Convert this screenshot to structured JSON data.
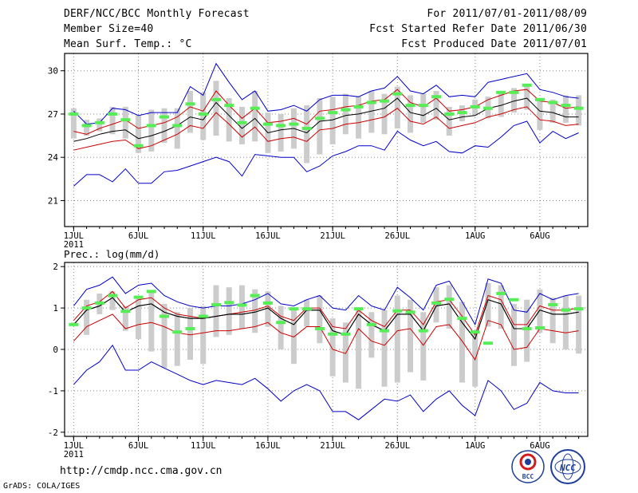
{
  "header": {
    "title": "DERF/NCC/BCC Monthly Forecast",
    "member_size": "Member Size=40",
    "variable": "Mean Surf. Temp.: °C",
    "period": "For 2011/07/01-2011/08/09",
    "refer_date": "Fcst Started Refer Date 2011/06/30",
    "produced_date": "Fcst Produced Date 2011/07/01"
  },
  "footer": {
    "url": "http://cmdp.ncc.cma.gov.cn",
    "grads_credit": "GrADS: COLA/IGES",
    "logo_bcc": "BCC",
    "logo_ncc": "NCC"
  },
  "colors": {
    "blue": "#0000cc",
    "red": "#cc0000",
    "black": "#000000",
    "green": "#55ee55",
    "box": "#cccccc"
  },
  "chart_data": [
    {
      "type": "ensemble-box-line",
      "title": "Mean Surf. Temp.: °C",
      "ylabel": "°C",
      "ylim": [
        19.2,
        31.2
      ],
      "yticks": [
        21,
        24,
        27,
        30
      ],
      "xlim": [
        0.3,
        40.7
      ],
      "xtick_days": [
        1,
        6,
        11,
        16,
        21,
        26,
        32,
        37
      ],
      "xtick_labels": [
        "1JUL",
        "6JUL",
        "11JUL",
        "16JUL",
        "21JUL",
        "26JUL",
        "1AUG",
        "6AUG"
      ],
      "year_label": "2011",
      "days": [
        1,
        2,
        3,
        4,
        5,
        6,
        7,
        8,
        9,
        10,
        11,
        12,
        13,
        14,
        15,
        16,
        17,
        18,
        19,
        20,
        21,
        22,
        23,
        24,
        25,
        26,
        27,
        28,
        29,
        30,
        31,
        32,
        33,
        34,
        35,
        36,
        37,
        38,
        39,
        40
      ],
      "series": [
        {
          "name": "ens_max",
          "color": "blue",
          "values": [
            27.2,
            26.3,
            26.4,
            27.4,
            27.3,
            26.9,
            27.1,
            27.1,
            27.1,
            28.9,
            28.3,
            30.5,
            29.2,
            28.0,
            28.6,
            27.2,
            27.3,
            27.6,
            27.2,
            28.0,
            28.3,
            28.3,
            28.2,
            28.6,
            28.8,
            29.6,
            28.6,
            28.4,
            29.0,
            28.2,
            28.3,
            28.2,
            29.2,
            29.4,
            29.6,
            29.8,
            28.7,
            28.5,
            28.2,
            28.1
          ]
        },
        {
          "name": "upper",
          "color": "red",
          "values": [
            25.8,
            25.6,
            26.0,
            26.3,
            26.6,
            26.0,
            26.2,
            26.4,
            26.8,
            27.5,
            27.2,
            28.6,
            27.6,
            26.7,
            27.4,
            26.4,
            26.5,
            26.7,
            26.3,
            27.2,
            27.3,
            27.5,
            27.6,
            27.9,
            28.0,
            28.7,
            27.8,
            27.5,
            28.1,
            27.2,
            27.3,
            27.5,
            28.0,
            28.3,
            28.6,
            28.7,
            27.9,
            27.8,
            27.4,
            27.5
          ]
        },
        {
          "name": "mean",
          "color": "black",
          "values": [
            25.1,
            25.3,
            25.6,
            25.8,
            25.9,
            25.3,
            25.5,
            25.8,
            26.2,
            26.8,
            26.6,
            27.8,
            26.9,
            26.0,
            26.7,
            25.7,
            25.9,
            26.0,
            25.7,
            26.5,
            26.6,
            26.9,
            27.0,
            27.2,
            27.4,
            28.1,
            27.1,
            26.9,
            27.4,
            26.6,
            26.8,
            26.9,
            27.4,
            27.6,
            27.9,
            28.1,
            27.2,
            27.1,
            26.8,
            26.8
          ]
        },
        {
          "name": "lower",
          "color": "red",
          "values": [
            24.5,
            24.7,
            24.9,
            25.1,
            25.2,
            24.6,
            24.8,
            25.2,
            25.6,
            26.2,
            26.0,
            27.1,
            26.3,
            25.4,
            26.1,
            25.1,
            25.3,
            25.4,
            25.1,
            25.9,
            26.0,
            26.3,
            26.4,
            26.6,
            26.8,
            27.4,
            26.5,
            26.3,
            26.8,
            26.0,
            26.2,
            26.4,
            26.8,
            27.0,
            27.3,
            27.5,
            26.6,
            26.5,
            26.2,
            26.3
          ]
        },
        {
          "name": "ens_min",
          "color": "blue",
          "values": [
            22.0,
            22.8,
            22.8,
            22.3,
            23.2,
            22.2,
            22.2,
            23.0,
            23.1,
            23.4,
            23.7,
            24.0,
            23.7,
            22.7,
            24.2,
            24.1,
            24.0,
            24.0,
            23.0,
            23.4,
            24.1,
            24.4,
            24.8,
            24.8,
            24.5,
            25.8,
            25.2,
            24.8,
            25.1,
            24.4,
            24.3,
            24.8,
            24.7,
            25.4,
            26.2,
            26.5,
            25.0,
            25.8,
            25.3,
            25.7
          ]
        }
      ],
      "box_low": [
        25.3,
        25.5,
        25.8,
        25.6,
        25.3,
        24.3,
        24.4,
        25.0,
        24.6,
        25.7,
        25.2,
        25.5,
        25.1,
        24.9,
        25.1,
        24.3,
        24.4,
        24.6,
        23.6,
        24.2,
        24.9,
        25.6,
        25.3,
        25.7,
        25.6,
        26.0,
        25.7,
        26.4,
        26.6,
        25.5,
        26.5,
        26.9,
        26.7,
        26.8,
        27.1,
        27.3,
        25.9,
        26.4,
        26.4,
        26.2
      ],
      "box_high": [
        27.4,
        26.6,
        26.7,
        27.5,
        27.5,
        26.9,
        27.3,
        27.4,
        27.4,
        28.6,
        28.5,
        29.3,
        28.1,
        27.5,
        28.6,
        27.1,
        27.0,
        27.4,
        27.6,
        28.1,
        28.2,
        28.4,
        28.2,
        28.6,
        28.4,
        28.9,
        28.3,
        28.4,
        28.6,
        27.5,
        27.6,
        28.0,
        28.2,
        28.6,
        28.8,
        29.0,
        28.0,
        28.0,
        28.3,
        28.3
      ],
      "observed": [
        27.0,
        26.2,
        26.4,
        27.0,
        26.6,
        24.8,
        26.2,
        26.8,
        26.2,
        27.7,
        27.0,
        28.0,
        27.6,
        26.4,
        27.4,
        26.3,
        26.2,
        26.3,
        26.0,
        26.7,
        27.1,
        27.3,
        27.5,
        27.8,
        27.9,
        28.4,
        27.6,
        27.6,
        28.2,
        27.0,
        27.1,
        27.5,
        27.4,
        28.5,
        28.5,
        29.0,
        28.0,
        27.8,
        27.6,
        27.4
      ]
    },
    {
      "type": "ensemble-box-line",
      "title": "Prec.: log(mm/d)",
      "ylabel": "log(mm/d)",
      "ylim": [
        -2.1,
        2.1
      ],
      "yticks": [
        -2,
        -1,
        0,
        1,
        2
      ],
      "xlim": [
        0.3,
        40.7
      ],
      "xtick_days": [
        1,
        6,
        11,
        16,
        21,
        26,
        32,
        37
      ],
      "xtick_labels": [
        "1JUL",
        "6JUL",
        "11JUL",
        "16JUL",
        "21JUL",
        "26JUL",
        "1AUG",
        "6AUG"
      ],
      "year_label": "2011",
      "days": [
        1,
        2,
        3,
        4,
        5,
        6,
        7,
        8,
        9,
        10,
        11,
        12,
        13,
        14,
        15,
        16,
        17,
        18,
        19,
        20,
        21,
        22,
        23,
        24,
        25,
        26,
        27,
        28,
        29,
        30,
        31,
        32,
        33,
        34,
        35,
        36,
        37,
        38,
        39,
        40
      ],
      "series": [
        {
          "name": "ens_max",
          "color": "blue",
          "values": [
            1.05,
            1.45,
            1.55,
            1.75,
            1.35,
            1.55,
            1.6,
            1.3,
            1.15,
            1.05,
            1.0,
            1.05,
            1.05,
            1.1,
            1.2,
            1.35,
            1.1,
            1.05,
            1.2,
            1.3,
            1.0,
            0.95,
            1.3,
            1.05,
            0.95,
            1.5,
            1.25,
            0.95,
            1.55,
            1.65,
            1.15,
            0.6,
            1.7,
            1.6,
            0.95,
            0.9,
            1.35,
            1.2,
            1.3,
            1.35
          ]
        },
        {
          "name": "upper",
          "color": "red",
          "values": [
            0.7,
            1.05,
            1.15,
            1.4,
            1.0,
            1.2,
            1.25,
            1.0,
            0.85,
            0.8,
            0.75,
            0.8,
            0.85,
            0.9,
            0.95,
            1.05,
            0.8,
            0.7,
            1.0,
            1.0,
            0.55,
            0.5,
            0.95,
            0.7,
            0.55,
            0.95,
            0.95,
            0.6,
            1.15,
            1.2,
            0.8,
            0.35,
            1.3,
            1.2,
            0.6,
            0.6,
            1.05,
            0.95,
            0.95,
            1.0
          ]
        },
        {
          "name": "mean",
          "color": "black",
          "values": [
            0.6,
            0.95,
            1.05,
            1.25,
            0.9,
            1.05,
            1.1,
            0.9,
            0.8,
            0.75,
            0.75,
            0.8,
            0.85,
            0.85,
            0.9,
            1.0,
            0.75,
            0.6,
            0.95,
            0.95,
            0.45,
            0.35,
            0.85,
            0.6,
            0.45,
            0.85,
            0.85,
            0.45,
            1.05,
            1.1,
            0.65,
            0.25,
            1.2,
            1.1,
            0.5,
            0.5,
            0.95,
            0.85,
            0.85,
            0.9
          ]
        },
        {
          "name": "lower",
          "color": "red",
          "values": [
            0.2,
            0.55,
            0.7,
            0.85,
            0.5,
            0.6,
            0.65,
            0.55,
            0.4,
            0.35,
            0.4,
            0.45,
            0.45,
            0.5,
            0.55,
            0.65,
            0.4,
            0.3,
            0.55,
            0.55,
            0.0,
            -0.1,
            0.5,
            0.2,
            0.1,
            0.45,
            0.5,
            0.1,
            0.55,
            0.6,
            0.2,
            -0.25,
            0.7,
            0.6,
            0.0,
            0.05,
            0.5,
            0.45,
            0.4,
            0.45
          ]
        },
        {
          "name": "ens_min",
          "color": "blue",
          "values": [
            -0.85,
            -0.5,
            -0.3,
            0.1,
            -0.5,
            -0.5,
            -0.3,
            -0.45,
            -0.6,
            -0.75,
            -0.85,
            -0.75,
            -0.8,
            -0.85,
            -0.7,
            -0.95,
            -1.25,
            -1.0,
            -0.85,
            -1.0,
            -1.5,
            -1.5,
            -1.7,
            -1.45,
            -1.2,
            -1.25,
            -1.1,
            -1.5,
            -1.2,
            -1.0,
            -1.35,
            -1.6,
            -0.75,
            -1.0,
            -1.45,
            -1.3,
            -0.8,
            -1.0,
            -1.05,
            -1.05
          ]
        },
        {
          "name": "forecast_trace",
          "color": "black",
          "values": [
            0.6,
            0.95,
            1.05,
            1.25,
            0.9,
            1.05,
            1.1,
            0.9,
            0.8,
            0.75,
            0.75,
            0.8,
            0.85,
            0.85,
            0.9,
            1.0,
            0.75,
            0.6,
            0.95,
            0.95,
            0.45,
            0.35,
            0.85,
            0.6,
            0.45,
            0.85,
            0.85,
            0.45,
            1.05,
            1.1,
            0.65,
            0.25,
            1.2,
            1.1,
            0.5,
            0.5,
            0.95,
            0.85,
            0.85,
            0.9
          ]
        }
      ],
      "box_low": [
        0.6,
        0.35,
        0.85,
        0.95,
        0.45,
        0.25,
        -0.05,
        -0.45,
        -0.4,
        -0.25,
        -0.35,
        0.3,
        0.35,
        0.5,
        0.4,
        0.55,
        0.0,
        -0.35,
        0.55,
        0.15,
        -0.65,
        -0.8,
        -0.95,
        -0.2,
        -0.9,
        -0.8,
        -0.55,
        -0.75,
        0.65,
        0.5,
        -0.8,
        -0.9,
        0.55,
        0.5,
        -0.4,
        -0.3,
        0.4,
        0.15,
        0.0,
        -0.1
      ],
      "box_high": [
        0.65,
        1.2,
        1.35,
        1.4,
        1.05,
        1.3,
        1.4,
        1.1,
        0.9,
        1.0,
        1.05,
        1.55,
        1.5,
        1.55,
        1.45,
        1.4,
        1.05,
        1.0,
        1.2,
        1.3,
        0.75,
        0.65,
        1.0,
        0.9,
        0.95,
        1.3,
        1.2,
        0.9,
        1.5,
        1.55,
        1.15,
        0.45,
        1.6,
        1.55,
        1.1,
        1.2,
        1.45,
        1.25,
        1.3,
        1.3
      ],
      "observed": [
        0.6,
        1.0,
        1.12,
        1.3,
        0.92,
        1.26,
        1.4,
        0.8,
        0.42,
        0.5,
        0.8,
        1.08,
        1.13,
        1.07,
        1.3,
        1.12,
        0.65,
        0.98,
        0.98,
        0.5,
        0.37,
        0.37,
        0.98,
        0.6,
        0.45,
        0.93,
        0.9,
        0.45,
        1.12,
        1.21,
        0.75,
        0.42,
        0.15,
        1.35,
        1.2,
        0.5,
        0.52,
        1.08,
        0.95,
        0.98
      ]
    }
  ]
}
